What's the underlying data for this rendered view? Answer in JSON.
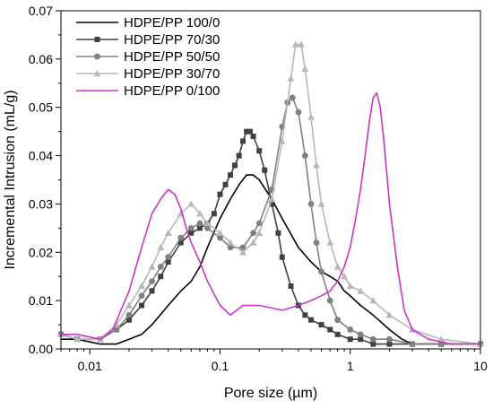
{
  "chart_data": {
    "type": "line",
    "title": "",
    "xlabel": "Pore size (µm)",
    "ylabel": "Incremental Intrusion (mL/g)",
    "x_scale": "log",
    "xlim": [
      0.006,
      10
    ],
    "ylim": [
      0,
      0.07
    ],
    "x_ticks": [
      0.01,
      0.1,
      1,
      10
    ],
    "x_tick_labels": [
      "0.01",
      "0.1",
      "1",
      "10"
    ],
    "y_ticks": [
      0,
      0.01,
      0.02,
      0.03,
      0.04,
      0.05,
      0.06,
      0.07
    ],
    "y_tick_labels": [
      "0.00",
      "0.01",
      "0.02",
      "0.03",
      "0.04",
      "0.05",
      "0.06",
      "0.07"
    ],
    "grid": false,
    "legend_position": "top-left",
    "series": [
      {
        "name": "HDPE/PP 100/0",
        "color": "#000000",
        "marker": "none",
        "x": [
          0.006,
          0.008,
          0.012,
          0.016,
          0.02,
          0.025,
          0.03,
          0.04,
          0.05,
          0.06,
          0.07,
          0.08,
          0.1,
          0.12,
          0.14,
          0.16,
          0.18,
          0.2,
          0.25,
          0.3,
          0.4,
          0.5,
          0.6,
          0.7,
          0.8,
          0.9,
          1.0,
          1.2,
          1.5,
          2.0,
          2.5,
          3.0,
          4.0,
          6.0,
          10.0
        ],
        "y": [
          0.002,
          0.002,
          0.001,
          0.001,
          0.002,
          0.003,
          0.005,
          0.009,
          0.012,
          0.014,
          0.017,
          0.021,
          0.027,
          0.031,
          0.034,
          0.036,
          0.036,
          0.035,
          0.031,
          0.027,
          0.021,
          0.018,
          0.016,
          0.015,
          0.014,
          0.012,
          0.011,
          0.009,
          0.007,
          0.004,
          0.002,
          0.001,
          0.001,
          0.001,
          0.001
        ]
      },
      {
        "name": "HDPE/PP 70/30",
        "color": "#404040",
        "marker": "square",
        "x": [
          0.006,
          0.008,
          0.012,
          0.016,
          0.02,
          0.025,
          0.03,
          0.035,
          0.04,
          0.05,
          0.06,
          0.07,
          0.08,
          0.09,
          0.1,
          0.11,
          0.12,
          0.13,
          0.14,
          0.15,
          0.16,
          0.17,
          0.18,
          0.2,
          0.22,
          0.25,
          0.28,
          0.3,
          0.35,
          0.4,
          0.45,
          0.5,
          0.6,
          0.7,
          0.8,
          1.0,
          1.2,
          1.5,
          2.0,
          3.0,
          5.0,
          10.0
        ],
        "y": [
          0.003,
          0.002,
          0.002,
          0.004,
          0.006,
          0.009,
          0.012,
          0.015,
          0.018,
          0.022,
          0.024,
          0.025,
          0.026,
          0.028,
          0.032,
          0.034,
          0.036,
          0.038,
          0.04,
          0.043,
          0.045,
          0.045,
          0.044,
          0.041,
          0.037,
          0.03,
          0.024,
          0.019,
          0.013,
          0.009,
          0.007,
          0.006,
          0.005,
          0.004,
          0.003,
          0.002,
          0.002,
          0.001,
          0.001,
          0.001,
          0.001,
          0.001
        ]
      },
      {
        "name": "HDPE/PP 50/50",
        "color": "#808080",
        "marker": "circle",
        "x": [
          0.006,
          0.008,
          0.012,
          0.016,
          0.02,
          0.025,
          0.03,
          0.035,
          0.04,
          0.05,
          0.06,
          0.07,
          0.08,
          0.1,
          0.12,
          0.15,
          0.18,
          0.2,
          0.25,
          0.3,
          0.33,
          0.36,
          0.4,
          0.45,
          0.5,
          0.55,
          0.6,
          0.7,
          0.8,
          1.0,
          1.2,
          1.5,
          2.0,
          3.0,
          5.0,
          10.0
        ],
        "y": [
          0.003,
          0.002,
          0.002,
          0.004,
          0.007,
          0.011,
          0.014,
          0.017,
          0.019,
          0.023,
          0.025,
          0.026,
          0.025,
          0.023,
          0.021,
          0.021,
          0.024,
          0.026,
          0.033,
          0.046,
          0.051,
          0.052,
          0.049,
          0.04,
          0.03,
          0.022,
          0.016,
          0.01,
          0.006,
          0.004,
          0.003,
          0.002,
          0.002,
          0.001,
          0.001,
          0.001
        ]
      },
      {
        "name": "HDPE/PP 30/70",
        "color": "#b8b8b8",
        "marker": "triangle",
        "x": [
          0.006,
          0.008,
          0.012,
          0.016,
          0.02,
          0.025,
          0.03,
          0.035,
          0.04,
          0.05,
          0.06,
          0.07,
          0.08,
          0.1,
          0.12,
          0.15,
          0.18,
          0.2,
          0.25,
          0.3,
          0.35,
          0.38,
          0.42,
          0.45,
          0.5,
          0.55,
          0.6,
          0.7,
          0.8,
          0.9,
          1.0,
          1.2,
          1.5,
          2.0,
          3.0,
          5.0,
          10.0
        ],
        "y": [
          0.003,
          0.002,
          0.002,
          0.005,
          0.009,
          0.013,
          0.017,
          0.021,
          0.024,
          0.028,
          0.03,
          0.028,
          0.026,
          0.024,
          0.022,
          0.02,
          0.022,
          0.024,
          0.031,
          0.043,
          0.056,
          0.063,
          0.063,
          0.058,
          0.048,
          0.038,
          0.03,
          0.022,
          0.017,
          0.015,
          0.013,
          0.012,
          0.01,
          0.007,
          0.004,
          0.002,
          0.001
        ]
      },
      {
        "name": "HDPE/PP 0/100",
        "color": "#cc33cc",
        "marker": "none",
        "x": [
          0.006,
          0.008,
          0.012,
          0.015,
          0.02,
          0.025,
          0.03,
          0.035,
          0.04,
          0.045,
          0.05,
          0.055,
          0.06,
          0.07,
          0.08,
          0.1,
          0.12,
          0.15,
          0.2,
          0.3,
          0.4,
          0.5,
          0.6,
          0.7,
          0.8,
          0.9,
          1.0,
          1.1,
          1.2,
          1.3,
          1.4,
          1.5,
          1.6,
          1.7,
          1.8,
          2.0,
          2.3,
          2.6,
          3.0,
          4.0,
          6.0,
          10.0
        ],
        "y": [
          0.003,
          0.003,
          0.002,
          0.004,
          0.012,
          0.021,
          0.028,
          0.031,
          0.033,
          0.032,
          0.029,
          0.025,
          0.022,
          0.018,
          0.014,
          0.009,
          0.007,
          0.009,
          0.009,
          0.008,
          0.009,
          0.01,
          0.011,
          0.012,
          0.014,
          0.017,
          0.021,
          0.027,
          0.033,
          0.04,
          0.047,
          0.052,
          0.053,
          0.05,
          0.044,
          0.03,
          0.017,
          0.008,
          0.004,
          0.002,
          0.001,
          0.001
        ]
      }
    ]
  }
}
